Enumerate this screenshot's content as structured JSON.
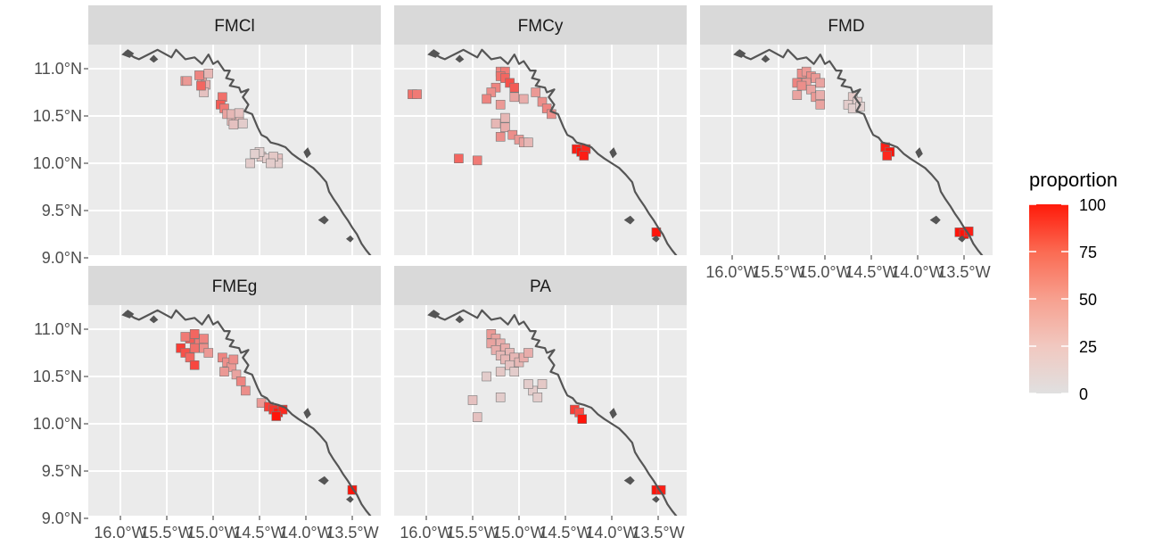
{
  "legend": {
    "title": "proportion",
    "breaks": [
      "100",
      "75",
      "50",
      "25",
      "0"
    ],
    "low_color": "#e0e0e0",
    "high_color": "#ff0000"
  },
  "axes": {
    "lat_labels": [
      "11.0°N",
      "10.5°N",
      "10.0°N",
      "9.5°N",
      "9.0°N"
    ],
    "lon_labels": [
      "16.0°W",
      "15.5°W",
      "15.0°W",
      "14.5°W",
      "14.0°W",
      "13.5°W"
    ]
  },
  "colors": {
    "panel_background": "#ebebeb",
    "grid": "#ffffff",
    "strip": "#d9d9d9",
    "coastline": "#555555",
    "cell_border": "#777777"
  },
  "panels": [
    {
      "name": "FMCl",
      "cells": [
        [
          -15.3,
          10.87,
          40
        ],
        [
          -15.28,
          10.87,
          35
        ],
        [
          -15.12,
          10.87,
          30
        ],
        [
          -15.08,
          10.83,
          25
        ],
        [
          -15.1,
          10.75,
          15
        ],
        [
          -15.05,
          10.95,
          20
        ],
        [
          -15.15,
          10.93,
          45
        ],
        [
          -15.13,
          10.82,
          60
        ],
        [
          -14.9,
          10.7,
          55
        ],
        [
          -14.92,
          10.62,
          65
        ],
        [
          -14.88,
          10.58,
          50
        ],
        [
          -14.85,
          10.52,
          30
        ],
        [
          -14.8,
          10.45,
          20
        ],
        [
          -14.75,
          10.48,
          25
        ],
        [
          -14.72,
          10.45,
          20
        ],
        [
          -14.8,
          10.52,
          20
        ],
        [
          -14.72,
          10.53,
          15
        ],
        [
          -14.78,
          10.41,
          15
        ],
        [
          -14.68,
          10.42,
          10
        ],
        [
          -14.48,
          10.07,
          12
        ],
        [
          -14.42,
          10.05,
          10
        ],
        [
          -14.3,
          10.05,
          15
        ],
        [
          -14.3,
          10.0,
          10
        ],
        [
          -14.35,
          10.07,
          12
        ],
        [
          -14.5,
          10.12,
          8
        ],
        [
          -14.55,
          10.1,
          8
        ],
        [
          -14.6,
          10.0,
          10
        ],
        [
          -14.38,
          10.0,
          10
        ]
      ]
    },
    {
      "name": "FMCy",
      "cells": [
        [
          -16.15,
          10.73,
          55
        ],
        [
          -16.1,
          10.73,
          50
        ],
        [
          -15.2,
          10.97,
          45
        ],
        [
          -15.15,
          10.97,
          50
        ],
        [
          -15.2,
          10.92,
          55
        ],
        [
          -15.15,
          10.9,
          60
        ],
        [
          -15.1,
          10.85,
          70
        ],
        [
          -15.05,
          10.8,
          65
        ],
        [
          -15.25,
          10.8,
          45
        ],
        [
          -15.3,
          10.75,
          40
        ],
        [
          -15.35,
          10.68,
          45
        ],
        [
          -15.2,
          10.62,
          35
        ],
        [
          -15.05,
          10.7,
          30
        ],
        [
          -14.95,
          10.68,
          25
        ],
        [
          -14.82,
          10.75,
          35
        ],
        [
          -14.75,
          10.65,
          40
        ],
        [
          -14.7,
          10.58,
          45
        ],
        [
          -14.65,
          10.52,
          40
        ],
        [
          -15.15,
          10.48,
          20
        ],
        [
          -15.25,
          10.42,
          20
        ],
        [
          -15.15,
          10.38,
          25
        ],
        [
          -15.2,
          10.28,
          40
        ],
        [
          -15.07,
          10.3,
          40
        ],
        [
          -15.0,
          10.25,
          35
        ],
        [
          -14.95,
          10.22,
          30
        ],
        [
          -14.9,
          10.22,
          20
        ],
        [
          -15.65,
          10.05,
          60
        ],
        [
          -15.45,
          10.03,
          50
        ],
        [
          -14.38,
          10.15,
          95
        ],
        [
          -14.33,
          10.12,
          100
        ],
        [
          -14.28,
          10.15,
          90
        ],
        [
          -14.3,
          10.08,
          95
        ],
        [
          -13.52,
          9.27,
          100
        ]
      ]
    },
    {
      "name": "FMD",
      "cells": [
        [
          -15.3,
          10.85,
          45
        ],
        [
          -15.25,
          10.95,
          40
        ],
        [
          -15.2,
          10.97,
          35
        ],
        [
          -15.15,
          10.92,
          40
        ],
        [
          -15.1,
          10.9,
          35
        ],
        [
          -15.05,
          10.85,
          30
        ],
        [
          -15.2,
          10.85,
          35
        ],
        [
          -15.25,
          10.82,
          40
        ],
        [
          -15.15,
          10.78,
          30
        ],
        [
          -15.1,
          10.7,
          35
        ],
        [
          -15.05,
          10.62,
          30
        ],
        [
          -15.05,
          10.72,
          25
        ],
        [
          -15.3,
          10.72,
          30
        ],
        [
          -14.7,
          10.7,
          12
        ],
        [
          -14.65,
          10.65,
          10
        ],
        [
          -14.75,
          10.62,
          10
        ],
        [
          -14.7,
          10.58,
          8
        ],
        [
          -14.62,
          10.6,
          8
        ],
        [
          -14.35,
          10.17,
          95
        ],
        [
          -14.3,
          10.12,
          100
        ],
        [
          -14.33,
          10.08,
          90
        ],
        [
          -13.55,
          9.27,
          100
        ],
        [
          -13.5,
          9.25,
          100
        ],
        [
          -13.45,
          9.28,
          95
        ]
      ]
    },
    {
      "name": "FMEg",
      "cells": [
        [
          -15.35,
          10.8,
          80
        ],
        [
          -15.3,
          10.75,
          70
        ],
        [
          -15.25,
          10.9,
          65
        ],
        [
          -15.2,
          10.95,
          60
        ],
        [
          -15.15,
          10.85,
          50
        ],
        [
          -15.1,
          10.8,
          40
        ],
        [
          -15.05,
          10.75,
          35
        ],
        [
          -15.2,
          10.8,
          55
        ],
        [
          -15.25,
          10.7,
          60
        ],
        [
          -15.2,
          10.62,
          75
        ],
        [
          -15.1,
          10.9,
          45
        ],
        [
          -15.3,
          10.92,
          50
        ],
        [
          -14.9,
          10.7,
          45
        ],
        [
          -14.85,
          10.65,
          40
        ],
        [
          -14.8,
          10.6,
          35
        ],
        [
          -14.78,
          10.68,
          40
        ],
        [
          -14.88,
          10.55,
          35
        ],
        [
          -14.75,
          10.52,
          30
        ],
        [
          -14.7,
          10.45,
          45
        ],
        [
          -14.65,
          10.35,
          40
        ],
        [
          -14.48,
          10.22,
          35
        ],
        [
          -14.4,
          10.18,
          80
        ],
        [
          -14.35,
          10.15,
          85
        ],
        [
          -14.3,
          10.12,
          95
        ],
        [
          -14.25,
          10.15,
          90
        ],
        [
          -14.32,
          10.08,
          100
        ],
        [
          -13.5,
          9.3,
          100
        ]
      ]
    },
    {
      "name": "PA",
      "cells": [
        [
          -15.3,
          10.95,
          35
        ],
        [
          -15.25,
          10.9,
          30
        ],
        [
          -15.2,
          10.85,
          25
        ],
        [
          -15.15,
          10.8,
          25
        ],
        [
          -15.1,
          10.75,
          20
        ],
        [
          -15.05,
          10.7,
          20
        ],
        [
          -15.0,
          10.65,
          20
        ],
        [
          -14.95,
          10.7,
          25
        ],
        [
          -14.9,
          10.75,
          25
        ],
        [
          -15.3,
          10.85,
          30
        ],
        [
          -15.25,
          10.78,
          25
        ],
        [
          -15.2,
          10.72,
          20
        ],
        [
          -15.15,
          10.68,
          20
        ],
        [
          -15.1,
          10.62,
          15
        ],
        [
          -15.05,
          10.55,
          10
        ],
        [
          -15.2,
          10.55,
          12
        ],
        [
          -15.35,
          10.5,
          10
        ],
        [
          -15.5,
          10.25,
          15
        ],
        [
          -15.45,
          10.07,
          15
        ],
        [
          -15.2,
          10.28,
          10
        ],
        [
          -14.85,
          10.35,
          10
        ],
        [
          -14.8,
          10.28,
          10
        ],
        [
          -14.9,
          10.42,
          10
        ],
        [
          -14.75,
          10.42,
          12
        ],
        [
          -14.4,
          10.15,
          80
        ],
        [
          -14.35,
          10.12,
          70
        ],
        [
          -14.32,
          10.05,
          100
        ],
        [
          -13.52,
          9.3,
          100
        ],
        [
          -13.47,
          9.3,
          95
        ]
      ]
    }
  ]
}
